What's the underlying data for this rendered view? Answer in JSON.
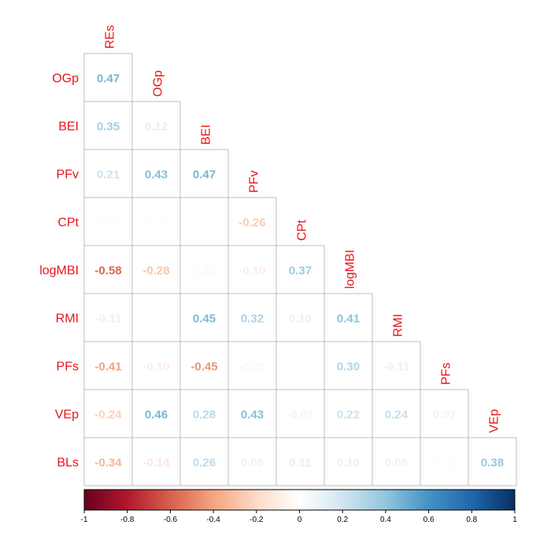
{
  "chart_data": {
    "type": "heatmap",
    "style": "lower-triangular correlation plot (corrplot)",
    "variables": [
      "REs",
      "OGp",
      "BEI",
      "PFv",
      "CPt",
      "logMBI",
      "RMI",
      "PFs",
      "VEp",
      "BLs"
    ],
    "column_labels": [
      "REs",
      "OGp",
      "BEI",
      "PFv",
      "CPt",
      "logMBI",
      "RMI",
      "PFs",
      "VEp"
    ],
    "row_labels": [
      "OGp",
      "BEI",
      "PFv",
      "CPt",
      "logMBI",
      "RMI",
      "PFs",
      "VEp",
      "BLs"
    ],
    "rows": [
      {
        "label": "OGp",
        "values": [
          0.47
        ]
      },
      {
        "label": "BEI",
        "values": [
          0.35,
          0.12
        ]
      },
      {
        "label": "PFv",
        "values": [
          0.21,
          0.43,
          0.47
        ]
      },
      {
        "label": "CPt",
        "values": [
          -0.02,
          -0.02,
          null,
          -0.26
        ]
      },
      {
        "label": "logMBI",
        "values": [
          -0.58,
          -0.28,
          0.03,
          -0.1,
          0.37
        ]
      },
      {
        "label": "RMI",
        "values": [
          -0.11,
          null,
          0.45,
          0.32,
          0.1,
          0.41
        ]
      },
      {
        "label": "PFs",
        "values": [
          -0.41,
          -0.1,
          -0.45,
          -0.05,
          null,
          0.3,
          -0.11
        ]
      },
      {
        "label": "VEp",
        "values": [
          -0.24,
          0.46,
          0.28,
          0.43,
          -0.07,
          0.22,
          0.24,
          0.07
        ]
      },
      {
        "label": "BLs",
        "values": [
          -0.34,
          -0.14,
          0.26,
          0.08,
          0.11,
          0.1,
          0.08,
          -0.02,
          0.38
        ]
      }
    ],
    "colorbar": {
      "range": [
        -1,
        1
      ],
      "ticks": [
        "-1",
        "-0.8",
        "-0.6",
        "-0.4",
        "-0.2",
        "0",
        "0.2",
        "0.4",
        "0.6",
        "0.8",
        "1"
      ],
      "colors": {
        "negative_end": "#67001F",
        "neutral": "#FFFFFF",
        "positive_end": "#053061"
      }
    },
    "label_color": "#E8141C",
    "grid_color": "#BEBEBE"
  }
}
